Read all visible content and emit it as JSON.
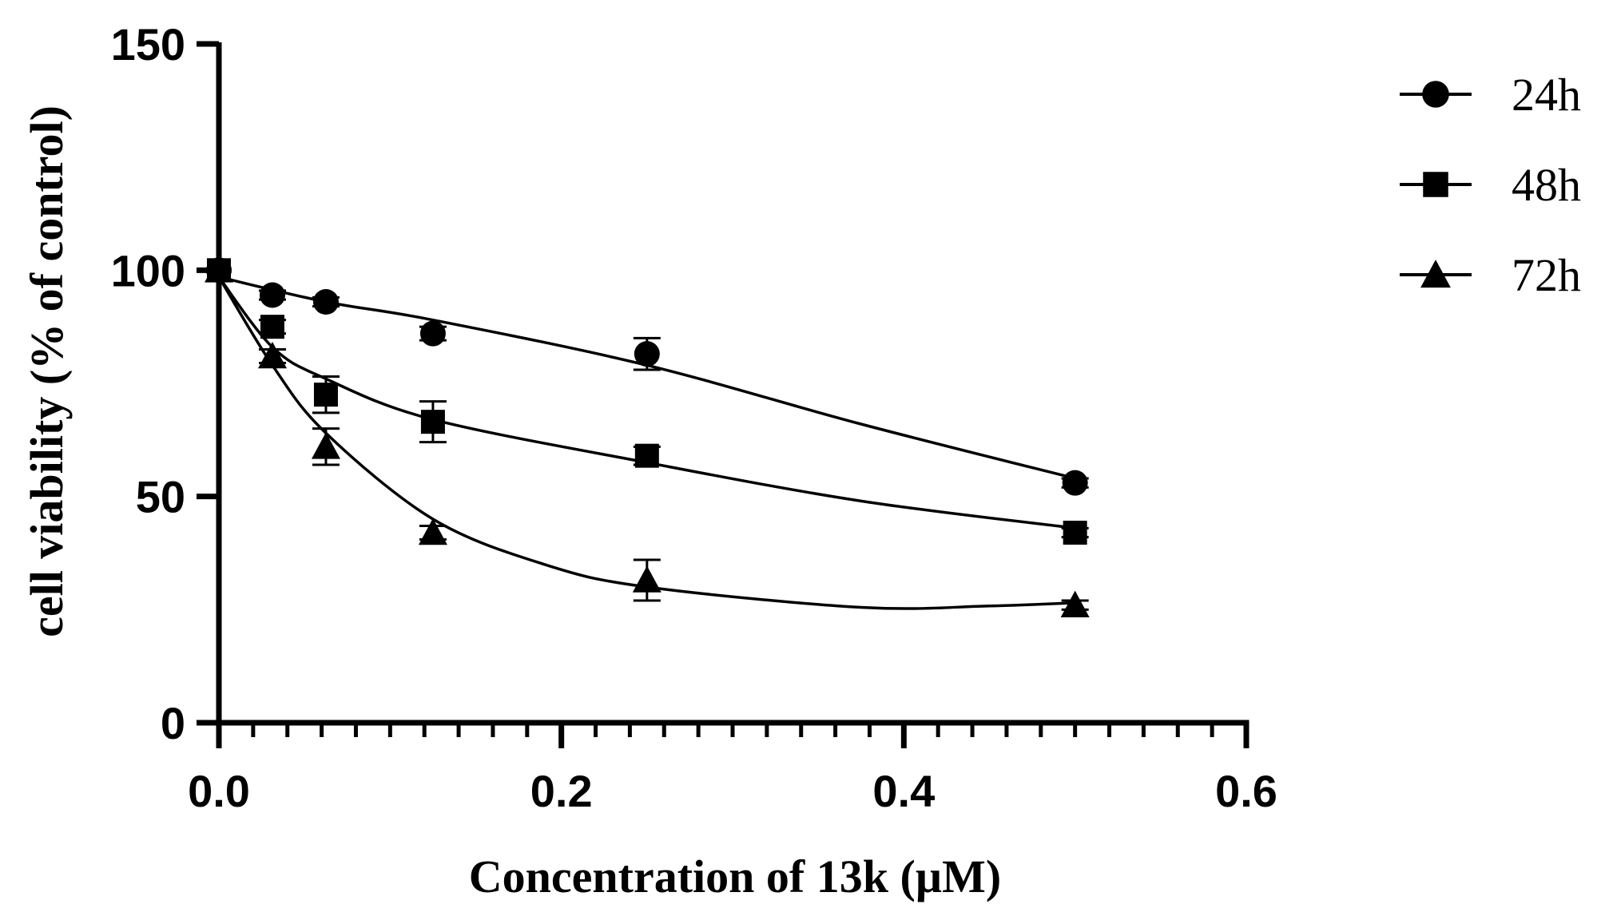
{
  "chart_data": {
    "type": "line",
    "title": "",
    "xlabel": "Concentration of 13k (µM)",
    "ylabel": "cell viability (% of control)",
    "xlim": [
      0,
      0.6
    ],
    "ylim": [
      0,
      150
    ],
    "x_ticks": [
      0,
      0.2,
      0.4,
      0.6
    ],
    "x_tick_labels": [
      "0.0",
      "0.2",
      "0.4",
      "0.6"
    ],
    "y_ticks": [
      0,
      50,
      100,
      150
    ],
    "y_tick_labels": [
      "0",
      "50",
      "100",
      "150"
    ],
    "x_minor_step": 0.02,
    "x": [
      0,
      0.03125,
      0.0625,
      0.125,
      0.25,
      0.5
    ],
    "legend_position": "top-right",
    "series": [
      {
        "name": "24h",
        "marker": "circle",
        "values": [
          100,
          94.5,
          93,
          86,
          81.5,
          53
        ],
        "errors": [
          0,
          1,
          1,
          1.5,
          3.5,
          1
        ],
        "fit": [
          [
            0,
            98.5
          ],
          [
            0.0625,
            93
          ],
          [
            0.125,
            89
          ],
          [
            0.25,
            79
          ],
          [
            0.375,
            66
          ],
          [
            0.5,
            54
          ]
        ]
      },
      {
        "name": "48h",
        "marker": "square",
        "values": [
          100,
          87.5,
          72.5,
          66.5,
          59,
          42
        ],
        "errors": [
          0,
          1.5,
          4,
          4.5,
          2,
          1
        ],
        "fit": [
          [
            0,
            98.5
          ],
          [
            0.03125,
            83
          ],
          [
            0.0625,
            76
          ],
          [
            0.125,
            67
          ],
          [
            0.25,
            57.5
          ],
          [
            0.375,
            49
          ],
          [
            0.5,
            43
          ]
        ]
      },
      {
        "name": "72h",
        "marker": "triangle",
        "values": [
          100,
          81,
          61,
          42,
          31.5,
          26
        ],
        "errors": [
          0,
          1.5,
          4,
          1.5,
          4.5,
          1
        ],
        "fit": [
          [
            0,
            98.5
          ],
          [
            0.03125,
            79
          ],
          [
            0.0625,
            64
          ],
          [
            0.125,
            45
          ],
          [
            0.19,
            35
          ],
          [
            0.25,
            30
          ],
          [
            0.375,
            25.5
          ],
          [
            0.45,
            25.8
          ],
          [
            0.5,
            26.5
          ]
        ]
      }
    ]
  }
}
